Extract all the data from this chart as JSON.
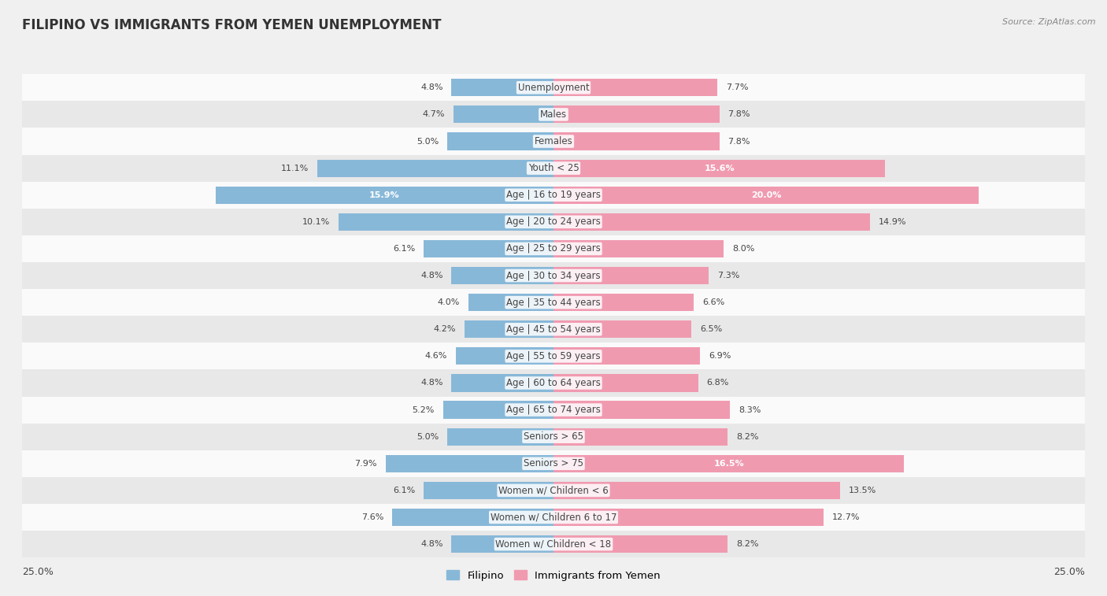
{
  "title": "FILIPINO VS IMMIGRANTS FROM YEMEN UNEMPLOYMENT",
  "source": "Source: ZipAtlas.com",
  "categories": [
    "Unemployment",
    "Males",
    "Females",
    "Youth < 25",
    "Age | 16 to 19 years",
    "Age | 20 to 24 years",
    "Age | 25 to 29 years",
    "Age | 30 to 34 years",
    "Age | 35 to 44 years",
    "Age | 45 to 54 years",
    "Age | 55 to 59 years",
    "Age | 60 to 64 years",
    "Age | 65 to 74 years",
    "Seniors > 65",
    "Seniors > 75",
    "Women w/ Children < 6",
    "Women w/ Children 6 to 17",
    "Women w/ Children < 18"
  ],
  "filipino": [
    4.8,
    4.7,
    5.0,
    11.1,
    15.9,
    10.1,
    6.1,
    4.8,
    4.0,
    4.2,
    4.6,
    4.8,
    5.2,
    5.0,
    7.9,
    6.1,
    7.6,
    4.8
  ],
  "yemen": [
    7.7,
    7.8,
    7.8,
    15.6,
    20.0,
    14.9,
    8.0,
    7.3,
    6.6,
    6.5,
    6.9,
    6.8,
    8.3,
    8.2,
    16.5,
    13.5,
    12.7,
    8.2
  ],
  "filipino_color": "#88b8d8",
  "yemen_color": "#f09ab0",
  "max_val": 25.0,
  "background_color": "#f0f0f0",
  "row_bg_light": "#fafafa",
  "row_bg_dark": "#e8e8e8",
  "title_fontsize": 12,
  "label_fontsize": 8.5,
  "value_fontsize": 8.0,
  "legend_fontsize": 9.5,
  "axis_tick_fontsize": 9
}
